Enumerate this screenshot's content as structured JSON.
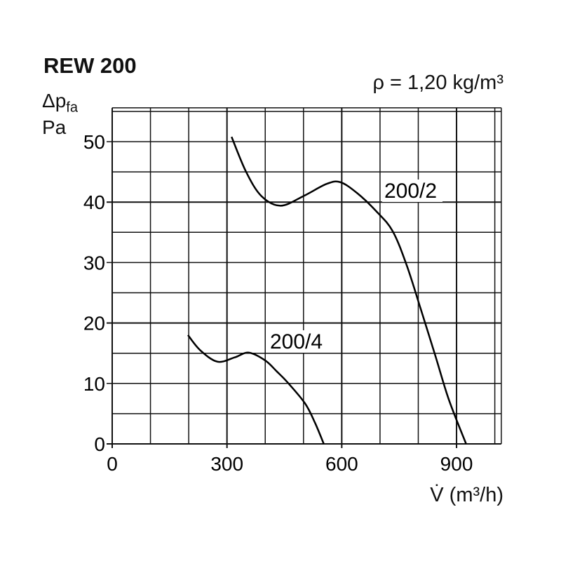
{
  "chart_data": {
    "type": "line",
    "title": "REW 200",
    "subtitle": "ρ = 1,20 kg/m³",
    "ylabel_symbol": "Δp",
    "ylabel_subscript": "fa",
    "ylabel_unit": "Pa",
    "xlabel": "V̇ (m³/h)",
    "xlim": [
      0,
      1017
    ],
    "ylim": [
      0,
      55.6
    ],
    "x_ticks": [
      0,
      300,
      600,
      900
    ],
    "y_ticks": [
      0,
      10,
      20,
      30,
      40,
      50
    ],
    "grid": true,
    "grid_x_step": 100,
    "grid_y_step": 5,
    "series": [
      {
        "name": "200/2",
        "points": [
          [
            312,
            50.8
          ],
          [
            350,
            45
          ],
          [
            390,
            41
          ],
          [
            440,
            39.4
          ],
          [
            500,
            41
          ],
          [
            560,
            43
          ],
          [
            596,
            43.3
          ],
          [
            640,
            41.5
          ],
          [
            690,
            38.5
          ],
          [
            733,
            35.2
          ],
          [
            770,
            29.5
          ],
          [
            806,
            22.4
          ],
          [
            845,
            14.5
          ],
          [
            880,
            7.3
          ],
          [
            925,
            0
          ]
        ]
      },
      {
        "name": "200/4",
        "points": [
          [
            198,
            18
          ],
          [
            230,
            15.5
          ],
          [
            275,
            13.6
          ],
          [
            320,
            14.3
          ],
          [
            357,
            15.1
          ],
          [
            400,
            13.8
          ],
          [
            430,
            12
          ],
          [
            458,
            10.2
          ],
          [
            504,
            6.7
          ],
          [
            530,
            3.5
          ],
          [
            553,
            0
          ]
        ]
      }
    ],
    "colors": {
      "line": "#000000",
      "grid": "#111111"
    }
  }
}
